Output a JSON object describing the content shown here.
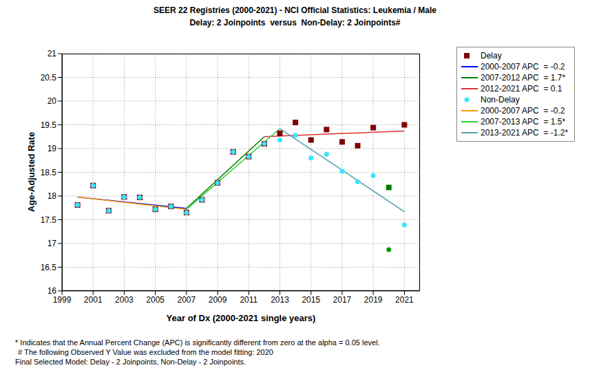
{
  "chart_data": {
    "type": "line",
    "title": "SEER 22 Registries (2000-2021) - NCI Official Statistics: Leukemia / Male",
    "subtitle": "Delay: 2 Joinpoints  versus  Non-Delay: 2 Joinpoints#",
    "x_label": "Year of Dx (2000-2021 single years)",
    "y_label": "Age-Adjusted Rate",
    "xlim": [
      1999,
      2022
    ],
    "xticks": [
      1999,
      2001,
      2003,
      2005,
      2007,
      2009,
      2011,
      2013,
      2015,
      2017,
      2019,
      2021
    ],
    "ylim": [
      16,
      21
    ],
    "yticks": [
      16,
      16.5,
      17,
      17.5,
      18,
      18.5,
      19,
      19.5,
      20,
      20.5,
      21
    ],
    "grid": true,
    "legend": "right",
    "notes": [
      "* Indicates that the Annual Percent Change (APC) is significantly different from zero at the alpha = 0.05 level.",
      "# The following Observed Y Value was excluded from the model fitting: 2020",
      "Final Selected Model: Delay - 2 Joinpoints, Non-Delay - 2 Joinpoints."
    ],
    "series": [
      {
        "name": "Delay",
        "type": "scatter",
        "marker": "square",
        "color": "#800000",
        "colors": [
          "#800000",
          "#800000",
          "#800000",
          "#800000",
          "#800000",
          "#800000",
          "#800000",
          "#800000",
          "#800000",
          "#800000",
          "#800000",
          "#800000",
          "#800000",
          "#800000",
          "#800000",
          "#800000",
          "#800000",
          "#800000",
          "#800000",
          "#800000",
          "#008000",
          "#800000"
        ],
        "x": [
          2000,
          2001,
          2002,
          2003,
          2004,
          2005,
          2006,
          2007,
          2008,
          2009,
          2010,
          2011,
          2012,
          2013,
          2014,
          2015,
          2016,
          2017,
          2018,
          2019,
          2020,
          2021
        ],
        "values": [
          17.81,
          18.22,
          17.69,
          17.98,
          17.97,
          17.72,
          17.78,
          17.65,
          17.92,
          18.28,
          18.93,
          18.83,
          19.1,
          19.32,
          19.55,
          19.18,
          19.4,
          19.14,
          19.06,
          19.44,
          18.18,
          19.5
        ]
      },
      {
        "name": "2000-2007 APC  = -0.2",
        "type": "line",
        "line_style": "solid",
        "color": "#0000ff",
        "x": [
          2000,
          2007
        ],
        "values": [
          17.98,
          17.74
        ]
      },
      {
        "name": "2007-2012 APC  = 1.7*",
        "type": "line",
        "line_style": "solid",
        "color": "#008000",
        "x": [
          2007,
          2012
        ],
        "values": [
          17.74,
          19.25
        ]
      },
      {
        "name": "2012-2021 APC  = 0.1",
        "type": "line",
        "line_style": "solid",
        "color": "#e03030",
        "x": [
          2012,
          2021
        ],
        "values": [
          19.25,
          19.37
        ]
      },
      {
        "name": "Non-Delay",
        "type": "scatter",
        "marker": "circle",
        "color": "#33e6ff",
        "colors": [
          "#33e6ff",
          "#33e6ff",
          "#33e6ff",
          "#33e6ff",
          "#33e6ff",
          "#33e6ff",
          "#33e6ff",
          "#33e6ff",
          "#33e6ff",
          "#33e6ff",
          "#33e6ff",
          "#33e6ff",
          "#33e6ff",
          "#33e6ff",
          "#33e6ff",
          "#33e6ff",
          "#33e6ff",
          "#33e6ff",
          "#33e6ff",
          "#33e6ff",
          "#009900",
          "#33e6ff"
        ],
        "x": [
          2000,
          2001,
          2002,
          2003,
          2004,
          2005,
          2006,
          2007,
          2008,
          2009,
          2010,
          2011,
          2012,
          2013,
          2014,
          2015,
          2016,
          2017,
          2018,
          2019,
          2020,
          2021
        ],
        "values": [
          17.81,
          18.22,
          17.69,
          17.98,
          17.97,
          17.72,
          17.78,
          17.65,
          17.92,
          18.28,
          18.93,
          18.83,
          19.1,
          19.18,
          19.28,
          18.8,
          18.88,
          18.52,
          18.3,
          18.43,
          16.87,
          17.39
        ]
      },
      {
        "name": "2000-2007 APC  = -0.2",
        "type": "line",
        "line_style": "solid",
        "color": "#ff9900",
        "x": [
          2000,
          2007
        ],
        "values": [
          17.98,
          17.72
        ]
      },
      {
        "name": "2007-2013 APC  = 1.5*",
        "type": "line",
        "line_style": "solid",
        "color": "#33cc33",
        "x": [
          2007,
          2013
        ],
        "values": [
          17.72,
          19.42
        ]
      },
      {
        "name": "2013-2021 APC  = -1.2*",
        "type": "line",
        "line_style": "solid",
        "color": "#4f9faf",
        "x": [
          2013,
          2021
        ],
        "values": [
          19.42,
          17.67
        ]
      }
    ]
  }
}
